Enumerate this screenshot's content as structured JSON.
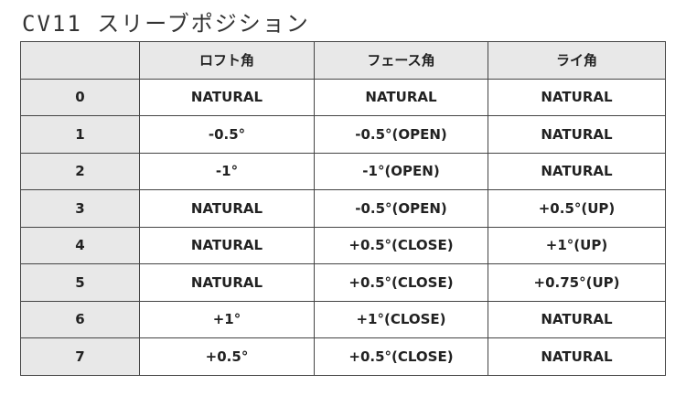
{
  "title": "CV11 スリーブポジション",
  "headers": [
    "",
    "ロフト角",
    "フェース角",
    "ライ角"
  ],
  "rows": [
    [
      "0",
      "NATURAL",
      "NATURAL",
      "NATURAL"
    ],
    [
      "1",
      "-0.5°",
      "-0.5°(OPEN)",
      "NATURAL"
    ],
    [
      "2",
      "-1°",
      "-1°(OPEN)",
      "NATURAL"
    ],
    [
      "3",
      "NATURAL",
      "-0.5°(OPEN)",
      "+0.5°(UP)"
    ],
    [
      "4",
      "NATURAL",
      "+0.5°(CLOSE)",
      "+1°(UP)"
    ],
    [
      "5",
      "NATURAL",
      "+0.5°(CLOSE)",
      "+0.75°(UP)"
    ],
    [
      "6",
      "+1°",
      "+1°(CLOSE)",
      "NATURAL"
    ],
    [
      "7",
      "+0.5°",
      "+0.5°(CLOSE)",
      "NATURAL"
    ]
  ]
}
